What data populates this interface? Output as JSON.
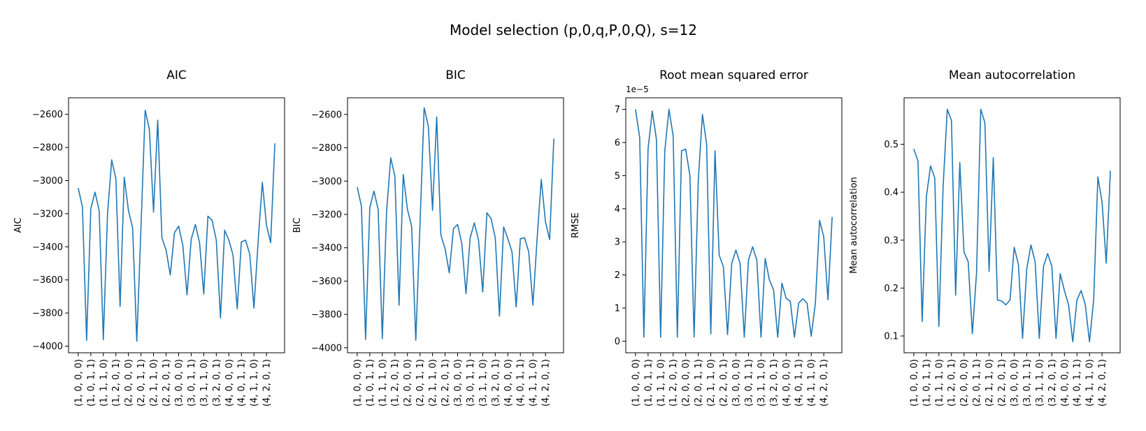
{
  "figure": {
    "title": "Model selection (p,0,q,P,0,Q), s=12",
    "line_color": "#1f77b4"
  },
  "chart_data": [
    {
      "type": "line",
      "title": "AIC",
      "xlabel": "",
      "ylabel": "AIC",
      "offset_text": "",
      "ylim": [
        -4040,
        -2500
      ],
      "yticks": [
        -4000,
        -3800,
        -3600,
        -3400,
        -3200,
        -3000,
        -2800,
        -2600
      ],
      "ytick_labels": [
        "−4000",
        "−3800",
        "−3600",
        "−3400",
        "−3200",
        "−3000",
        "−2800",
        "−2600"
      ],
      "xtick_labels": [
        "(1, 0, 0, 0)",
        "(1, 0, 1, 1)",
        "(1, 1, 1, 0)",
        "(1, 2, 0, 1)",
        "(2, 0, 0, 0)",
        "(2, 0, 1, 1)",
        "(2, 1, 1, 0)",
        "(2, 2, 0, 1)",
        "(3, 0, 0, 0)",
        "(3, 0, 1, 1)",
        "(3, 1, 1, 0)",
        "(3, 2, 0, 1)",
        "(4, 0, 0, 0)",
        "(4, 0, 1, 1)",
        "(4, 1, 1, 0)",
        "(4, 2, 0, 1)"
      ],
      "values": [
        -3045,
        -3160,
        -3965,
        -3170,
        -3070,
        -3180,
        -3960,
        -3200,
        -2875,
        -2990,
        -3760,
        -2980,
        -3180,
        -3285,
        -3970,
        -3280,
        -2575,
        -2690,
        -3190,
        -2635,
        -3345,
        -3420,
        -3570,
        -3315,
        -3275,
        -3390,
        -3690,
        -3355,
        -3265,
        -3375,
        -3685,
        -3215,
        -3240,
        -3360,
        -3830,
        -3300,
        -3360,
        -3450,
        -3775,
        -3370,
        -3360,
        -3445,
        -3770,
        -3370,
        -3010,
        -3270,
        -3375,
        -2775
      ]
    },
    {
      "type": "line",
      "title": "BIC",
      "xlabel": "",
      "ylabel": "BIC",
      "offset_text": "",
      "ylim": [
        -4030,
        -2500
      ],
      "yticks": [
        -4000,
        -3800,
        -3600,
        -3400,
        -3200,
        -3000,
        -2800,
        -2600
      ],
      "ytick_labels": [
        "−4000",
        "−3800",
        "−3600",
        "−3400",
        "−3200",
        "−3000",
        "−2800",
        "−2600"
      ],
      "xtick_labels": [
        "(1, 0, 0, 0)",
        "(1, 0, 1, 1)",
        "(1, 1, 1, 0)",
        "(1, 2, 0, 1)",
        "(2, 0, 0, 0)",
        "(2, 0, 1, 1)",
        "(2, 1, 1, 0)",
        "(2, 2, 0, 1)",
        "(3, 0, 0, 0)",
        "(3, 0, 1, 1)",
        "(3, 1, 1, 0)",
        "(3, 2, 0, 1)",
        "(4, 0, 0, 0)",
        "(4, 0, 1, 1)",
        "(4, 1, 1, 0)",
        "(4, 2, 0, 1)"
      ],
      "values": [
        -3035,
        -3150,
        -3950,
        -3160,
        -3060,
        -3170,
        -3945,
        -3190,
        -2860,
        -2970,
        -3745,
        -2960,
        -3170,
        -3270,
        -3955,
        -3265,
        -2560,
        -2670,
        -3175,
        -2615,
        -3325,
        -3405,
        -3550,
        -3285,
        -3260,
        -3375,
        -3675,
        -3340,
        -3250,
        -3355,
        -3665,
        -3190,
        -3225,
        -3340,
        -3810,
        -3275,
        -3345,
        -3425,
        -3755,
        -3345,
        -3340,
        -3425,
        -3745,
        -3345,
        -2990,
        -3245,
        -3350,
        -2745
      ]
    },
    {
      "type": "line",
      "title": "Root mean squared error",
      "xlabel": "",
      "ylabel": "RMSE",
      "offset_text": "1e−5",
      "ylim": [
        -0.35,
        7.35
      ],
      "yticks": [
        0,
        1,
        2,
        3,
        4,
        5,
        6,
        7
      ],
      "ytick_labels": [
        "0",
        "1",
        "2",
        "3",
        "4",
        "5",
        "6",
        "7"
      ],
      "xtick_labels": [
        "(1, 0, 0, 0)",
        "(1, 0, 1, 1)",
        "(1, 1, 1, 0)",
        "(1, 2, 0, 1)",
        "(2, 0, 0, 0)",
        "(2, 0, 1, 1)",
        "(2, 1, 1, 0)",
        "(2, 2, 0, 1)",
        "(3, 0, 0, 0)",
        "(3, 0, 1, 1)",
        "(3, 1, 1, 0)",
        "(3, 2, 0, 1)",
        "(4, 0, 0, 0)",
        "(4, 0, 1, 1)",
        "(4, 1, 1, 0)",
        "(4, 2, 0, 1)"
      ],
      "values": [
        7.0,
        6.15,
        0.12,
        5.8,
        6.95,
        6.1,
        0.12,
        5.75,
        7.0,
        6.2,
        0.12,
        5.75,
        5.8,
        5.0,
        0.12,
        4.85,
        6.85,
        5.95,
        0.22,
        5.75,
        2.6,
        2.25,
        0.2,
        2.35,
        2.75,
        2.35,
        0.12,
        2.45,
        2.85,
        2.45,
        0.12,
        2.5,
        1.85,
        1.55,
        0.12,
        1.75,
        1.3,
        1.2,
        0.12,
        1.15,
        1.28,
        1.15,
        0.15,
        1.15,
        3.65,
        3.15,
        1.25,
        3.75
      ]
    },
    {
      "type": "line",
      "title": "Mean autocorrelation",
      "xlabel": "",
      "ylabel": "Mean autocorrelation",
      "offset_text": "",
      "ylim": [
        0.065,
        0.597
      ],
      "yticks": [
        0.1,
        0.2,
        0.3,
        0.4,
        0.5
      ],
      "ytick_labels": [
        "0.1",
        "0.2",
        "0.3",
        "0.4",
        "0.5"
      ],
      "xtick_labels": [
        "(1, 0, 0, 0)",
        "(1, 0, 1, 1)",
        "(1, 1, 1, 0)",
        "(1, 2, 0, 1)",
        "(2, 0, 0, 0)",
        "(2, 0, 1, 1)",
        "(2, 1, 1, 0)",
        "(2, 2, 0, 1)",
        "(3, 0, 0, 0)",
        "(3, 0, 1, 1)",
        "(3, 1, 1, 0)",
        "(3, 2, 0, 1)",
        "(4, 0, 0, 0)",
        "(4, 0, 1, 1)",
        "(4, 1, 1, 0)",
        "(4, 2, 0, 1)"
      ],
      "values": [
        0.49,
        0.465,
        0.13,
        0.39,
        0.455,
        0.43,
        0.12,
        0.41,
        0.573,
        0.55,
        0.185,
        0.462,
        0.275,
        0.255,
        0.105,
        0.232,
        0.573,
        0.545,
        0.235,
        0.472,
        0.175,
        0.173,
        0.165,
        0.175,
        0.285,
        0.25,
        0.095,
        0.24,
        0.29,
        0.255,
        0.095,
        0.245,
        0.272,
        0.245,
        0.095,
        0.23,
        0.195,
        0.165,
        0.088,
        0.175,
        0.195,
        0.165,
        0.088,
        0.175,
        0.432,
        0.38,
        0.252,
        0.445
      ]
    }
  ]
}
